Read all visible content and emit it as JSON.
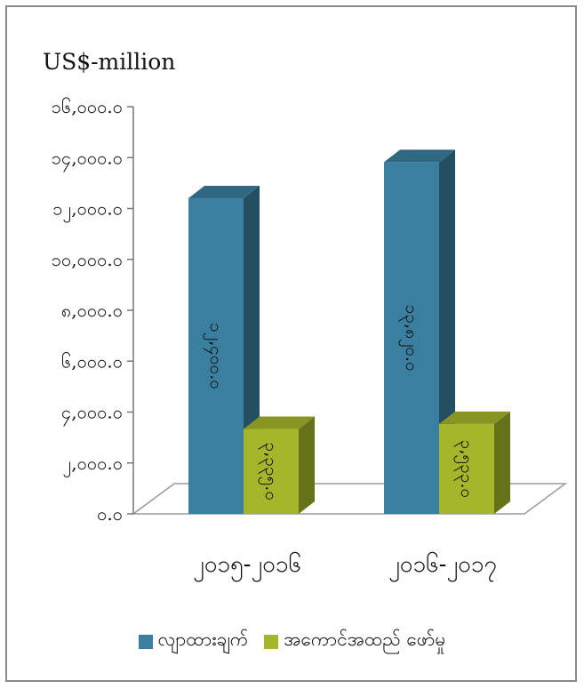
{
  "colors": {
    "series_1": "#3a7fa0",
    "series_2": "#a6b62a"
  },
  "chart_data": {
    "type": "bar",
    "title": "",
    "unit_label": "US$-million",
    "categories": [
      "၂၀၁၅-၂၀၁၆",
      "၂၀၁၆-၂၀၁၇"
    ],
    "series": [
      {
        "name": "လျာထားချက်",
        "values": [
          12400.0,
          13820.0
        ],
        "value_labels": [
          "၁၂,၄၀၀.၀",
          "၁၃,၈၂၀.၀"
        ]
      },
      {
        "name": "အကောင်အထည် ဖော်မှု",
        "values": [
          3335.0,
          3533.0
        ],
        "value_labels": [
          "၃,၃၃၅.၀",
          "၃,၅၃၃.၀"
        ]
      }
    ],
    "yticks": [
      "၀.၀",
      "၂,၀၀၀.၀",
      "၄,၀၀၀.၀",
      "၆,၀၀၀.၀",
      "၈,၀၀၀.၀",
      "၁၀,၀၀၀.၀",
      "၁၂,၀၀၀.၀",
      "၁၄,၀၀၀.၀",
      "၁၆,၀၀၀.၀"
    ],
    "ylim": [
      0,
      16000
    ],
    "grid": false,
    "legend_position": "bottom"
  }
}
